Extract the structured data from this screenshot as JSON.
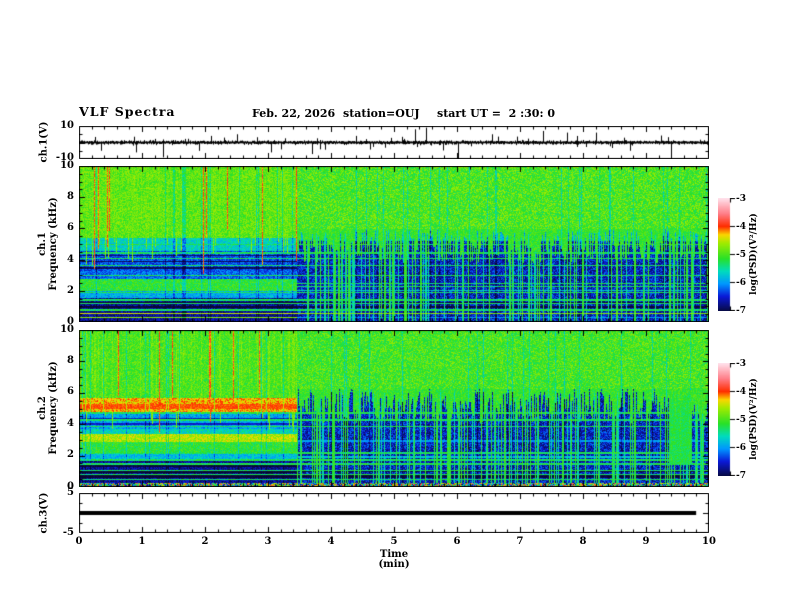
{
  "header": {
    "title": "VLF Spectra",
    "date": "Feb. 22, 2026",
    "station": "station=OUJ",
    "start_ut": "start UT =  2 :30: 0"
  },
  "panels": {
    "ch1v": {
      "ylabel": "ch.1(V)",
      "yticks": [
        "10",
        "-10"
      ]
    },
    "spec1": {
      "ylabel_line1": "ch.1",
      "ylabel_line2": "Frequency (kHz)",
      "yticks": [
        "10",
        "8",
        "6",
        "4",
        "2",
        "0"
      ]
    },
    "spec2": {
      "ylabel_line1": "ch.2",
      "ylabel_line2": "Frequency (kHz)",
      "yticks": [
        "10",
        "8",
        "6",
        "4",
        "2",
        "0"
      ]
    },
    "ch3v": {
      "ylabel": "ch.3(V)",
      "yticks": [
        "5",
        "-5"
      ]
    }
  },
  "xaxis": {
    "label": "Time (min)",
    "ticks": [
      "0",
      "1",
      "2",
      "3",
      "4",
      "5",
      "6",
      "7",
      "8",
      "9",
      "10"
    ]
  },
  "colorbar": {
    "label": "log(PSD)(V²/Hz)",
    "ticks": [
      "-3",
      "-4",
      "-5",
      "-6",
      "-7"
    ]
  },
  "chart_data": [
    {
      "type": "line",
      "panel": "ch.1(V) voltage waveform",
      "xlabel": "Time (min)",
      "xlim": [
        0,
        10
      ],
      "ylabel": "ch.1(V)",
      "ylim": [
        -10,
        10
      ],
      "description": "dense broadband noise trace centered on 0 V with impulsive spikes",
      "spikes_t_v": [
        [
          0.35,
          -5
        ],
        [
          0.9,
          -6
        ],
        [
          1.33,
          -9
        ],
        [
          2.1,
          4
        ],
        [
          2.5,
          5
        ],
        [
          3.05,
          -6
        ],
        [
          3.7,
          -7
        ],
        [
          4.4,
          4
        ],
        [
          5.33,
          8
        ],
        [
          5.5,
          9
        ],
        [
          6.02,
          -10
        ],
        [
          6.55,
          5
        ],
        [
          7.37,
          7
        ],
        [
          7.75,
          6
        ],
        [
          8.2,
          6
        ],
        [
          8.75,
          -5
        ],
        [
          9.4,
          -10
        ]
      ]
    },
    {
      "type": "heatmap",
      "panel": "ch.1 spectrogram",
      "xlabel": "Time (min)",
      "xlim": [
        0,
        10
      ],
      "ylabel": "Frequency (kHz)",
      "ylim": [
        0,
        10
      ],
      "zlabel": "log(PSD)(V²/Hz)",
      "zlim": [
        -7,
        -3
      ],
      "transition_min": 3.45,
      "bright_bands_kHz_level": [
        [
          5.4,
          10.01,
          -4.9
        ],
        [
          4.6,
          5.4,
          -5.65
        ],
        [
          3.3,
          4.6,
          -6.3
        ],
        [
          2.8,
          3.3,
          -6.2
        ],
        [
          2.0,
          2.8,
          -5.15
        ],
        [
          1.6,
          2.0,
          -5.9
        ],
        [
          0,
          1.6,
          -6.75
        ]
      ],
      "bright_rows_kHz_level": [
        [
          3.45,
          3.56,
          -6.95
        ],
        [
          3.85,
          3.96,
          -6.95
        ],
        [
          4.25,
          4.34,
          -6.9
        ],
        [
          0.92,
          1.08,
          -7.1
        ],
        [
          1.18,
          1.32,
          -7.1
        ],
        [
          0.52,
          0.62,
          -4.45
        ],
        [
          0.3,
          0.38,
          -4.7
        ]
      ],
      "dark_bands_kHz_level": [
        [
          6.0,
          10.01,
          -5.0
        ],
        [
          5.2,
          6.0,
          -5.8
        ],
        [
          0,
          5.2,
          -6.55
        ]
      ],
      "dark_rows_kHz_level": [
        [
          2.0,
          2.1,
          -5.65
        ],
        [
          0.92,
          1.08,
          -7.05
        ],
        [
          1.18,
          1.3,
          -7.05
        ],
        [
          0.52,
          0.6,
          -4.7
        ],
        [
          0.3,
          0.36,
          -6.0
        ]
      ],
      "hlines_kHz": [
        5.02,
        4.45,
        4.1,
        3.65,
        3.0,
        2.52,
        2.32,
        1.9,
        1.45,
        1.2,
        0.8
      ],
      "top_band_base_kHz": 6.0
    },
    {
      "type": "heatmap",
      "panel": "ch.2 spectrogram",
      "xlabel": "Time (min)",
      "xlim": [
        0,
        10
      ],
      "ylabel": "Frequency (kHz)",
      "ylim": [
        0,
        10
      ],
      "zlabel": "log(PSD)(V²/Hz)",
      "zlim": [
        -7,
        -3
      ],
      "transition_min": 3.45,
      "bright_bands_kHz_level": [
        [
          5.7,
          10.01,
          -5.0
        ],
        [
          4.8,
          5.7,
          -4.25
        ],
        [
          3.7,
          4.8,
          -5.95
        ],
        [
          3.4,
          3.7,
          -5.6
        ],
        [
          2.9,
          3.4,
          -4.55
        ],
        [
          2.2,
          2.9,
          -5.15
        ],
        [
          1.8,
          2.2,
          -5.8
        ],
        [
          0.3,
          1.8,
          -6.75
        ],
        [
          0,
          0.3,
          -99
        ]
      ],
      "bright_rows_kHz_level": [
        [
          0.6,
          0.78,
          -7.1
        ],
        [
          0.95,
          1.12,
          -7.1
        ],
        [
          1.3,
          1.42,
          -7.05
        ],
        [
          4.0,
          4.1,
          -6.55
        ],
        [
          4.35,
          4.45,
          -6.55
        ],
        [
          5.0,
          5.3,
          -4.05
        ]
      ],
      "dark_bands_kHz_level": [
        [
          6.3,
          10.01,
          -5.05
        ],
        [
          0.3,
          6.3,
          -6.55
        ],
        [
          0,
          0.3,
          -99
        ]
      ],
      "dark_rows_kHz_level": [
        [
          1.9,
          2.0,
          -5.7
        ],
        [
          0.6,
          0.78,
          -7.05
        ],
        [
          1.0,
          1.12,
          -7.05
        ],
        [
          2.9,
          3.0,
          -6.0
        ]
      ],
      "hlines_kHz": [
        6.1,
        4.75,
        4.3,
        3.9,
        2.2,
        1.75,
        1.5,
        1.1,
        0.85,
        0.5
      ],
      "green_column_t_f": [
        9.35,
        9.72,
        1.5,
        6.2,
        -5.25
      ],
      "top_band_base_kHz": 6.3
    },
    {
      "type": "line",
      "panel": "ch.3(V) voltage",
      "xlabel": "Time (min)",
      "xlim": [
        0,
        10
      ],
      "ylabel": "ch.3(V)",
      "ylim": [
        -5,
        5
      ],
      "description": "flat thick line at 0 V spanning 0 to ~9.8 min",
      "value": 0,
      "line_end_min": 9.78
    }
  ],
  "colormap_stops": [
    [
      -7.1,
      8,
      8,
      45
    ],
    [
      -6.5,
      10,
      25,
      215
    ],
    [
      -6.05,
      0,
      150,
      255
    ],
    [
      -5.6,
      0,
      220,
      190
    ],
    [
      -5.15,
      40,
      225,
      40
    ],
    [
      -4.6,
      160,
      235,
      0
    ],
    [
      -4.3,
      250,
      215,
      0
    ],
    [
      -4.0,
      255,
      45,
      0
    ],
    [
      -3.55,
      255,
      125,
      135
    ],
    [
      -3.0,
      255,
      225,
      235
    ]
  ]
}
